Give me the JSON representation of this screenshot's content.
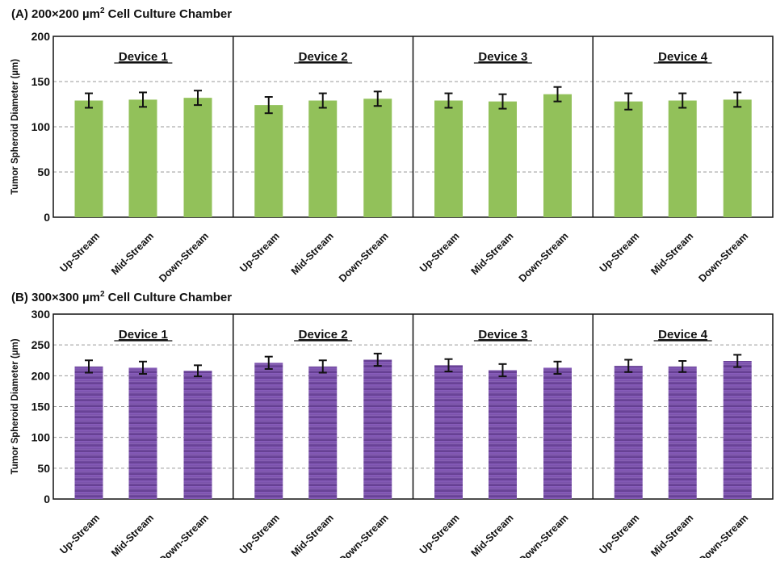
{
  "chart_data": [
    {
      "type": "bar",
      "title_prefix": "(A) 200×200 µm",
      "title_sup": "2",
      "title_suffix": " Cell Culture Chamber",
      "ylabel": "Tumor Spheroid Diameter (µm)",
      "xlabel": "",
      "ylim": [
        0,
        200
      ],
      "yticks": [
        0,
        50,
        100,
        150,
        200
      ],
      "grid": true,
      "bar_color": "#92c15a",
      "groups": [
        {
          "name": "Device 1",
          "categories": [
            "Up-Stream",
            "Mid-Stream",
            "Down-Stream"
          ],
          "values": [
            129,
            130,
            132
          ],
          "errors": [
            8,
            8,
            8
          ]
        },
        {
          "name": "Device 2",
          "categories": [
            "Up-Stream",
            "Mid-Stream",
            "Down-Stream"
          ],
          "values": [
            124,
            129,
            131
          ],
          "errors": [
            9,
            8,
            8
          ]
        },
        {
          "name": "Device 3",
          "categories": [
            "Up-Stream",
            "Mid-Stream",
            "Down-Stream"
          ],
          "values": [
            129,
            128,
            136
          ],
          "errors": [
            8,
            8,
            8
          ]
        },
        {
          "name": "Device 4",
          "categories": [
            "Up-Stream",
            "Mid-Stream",
            "Down-Stream"
          ],
          "values": [
            128,
            129,
            130
          ],
          "errors": [
            9,
            8,
            8
          ]
        }
      ]
    },
    {
      "type": "bar",
      "title_prefix": "(B) 300×300 µm",
      "title_sup": "2",
      "title_suffix": " Cell Culture Chamber",
      "ylabel": "Tumor Spheroid Diameter (µm)",
      "xlabel": "",
      "ylim": [
        0,
        300
      ],
      "yticks": [
        0,
        50,
        100,
        150,
        200,
        250,
        300
      ],
      "grid": true,
      "bar_color": "#7b52ab",
      "groups": [
        {
          "name": "Device 1",
          "categories": [
            "Up-Stream",
            "Mid-Stream",
            "Down-Stream"
          ],
          "values": [
            215,
            213,
            208
          ],
          "errors": [
            10,
            10,
            9
          ]
        },
        {
          "name": "Device 2",
          "categories": [
            "Up-Stream",
            "Mid-Stream",
            "Down-Stream"
          ],
          "values": [
            221,
            215,
            226
          ],
          "errors": [
            10,
            10,
            10
          ]
        },
        {
          "name": "Device 3",
          "categories": [
            "Up-Stream",
            "Mid-Stream",
            "Down-Stream"
          ],
          "values": [
            217,
            209,
            213
          ],
          "errors": [
            10,
            10,
            10
          ]
        },
        {
          "name": "Device 4",
          "categories": [
            "Up-Stream",
            "Mid-Stream",
            "Down-Stream"
          ],
          "values": [
            216,
            215,
            224
          ],
          "errors": [
            10,
            9,
            10
          ]
        }
      ]
    }
  ]
}
